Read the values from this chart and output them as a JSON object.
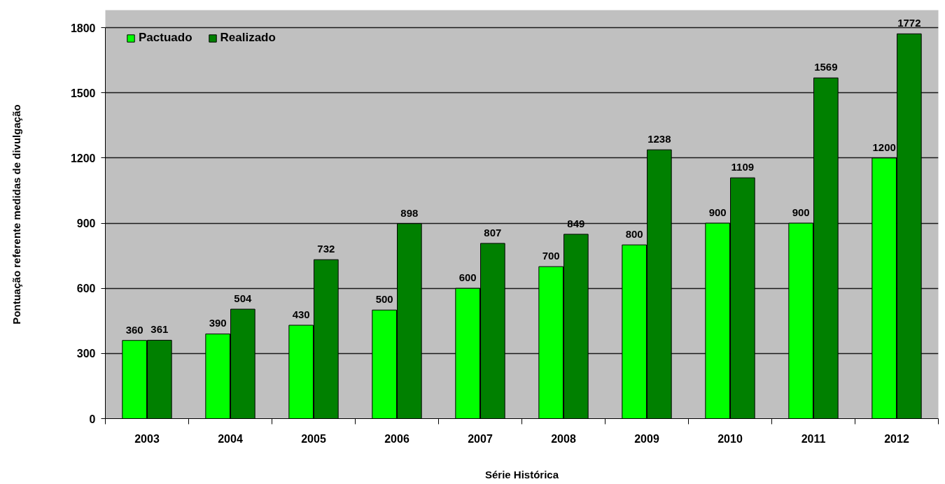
{
  "chart_data": {
    "type": "bar",
    "xlabel": "Série Histórica",
    "ylabel": "Pontuação referente medidas de divulgação",
    "categories": [
      "2003",
      "2004",
      "2005",
      "2006",
      "2007",
      "2008",
      "2009",
      "2010",
      "2011",
      "2012"
    ],
    "series": [
      {
        "name": "Pactuado",
        "color": "#00ff00",
        "values": [
          360,
          390,
          430,
          500,
          600,
          700,
          800,
          900,
          900,
          1200
        ]
      },
      {
        "name": "Realizado",
        "color": "#008000",
        "values": [
          361,
          504,
          732,
          898,
          807,
          849,
          1238,
          1109,
          1569,
          1772
        ]
      }
    ],
    "ylim": [
      0,
      1800
    ],
    "yticks": [
      0,
      300,
      600,
      900,
      1200,
      1500,
      1800
    ],
    "grid": "y",
    "legend": "top left",
    "data_labels": true
  }
}
